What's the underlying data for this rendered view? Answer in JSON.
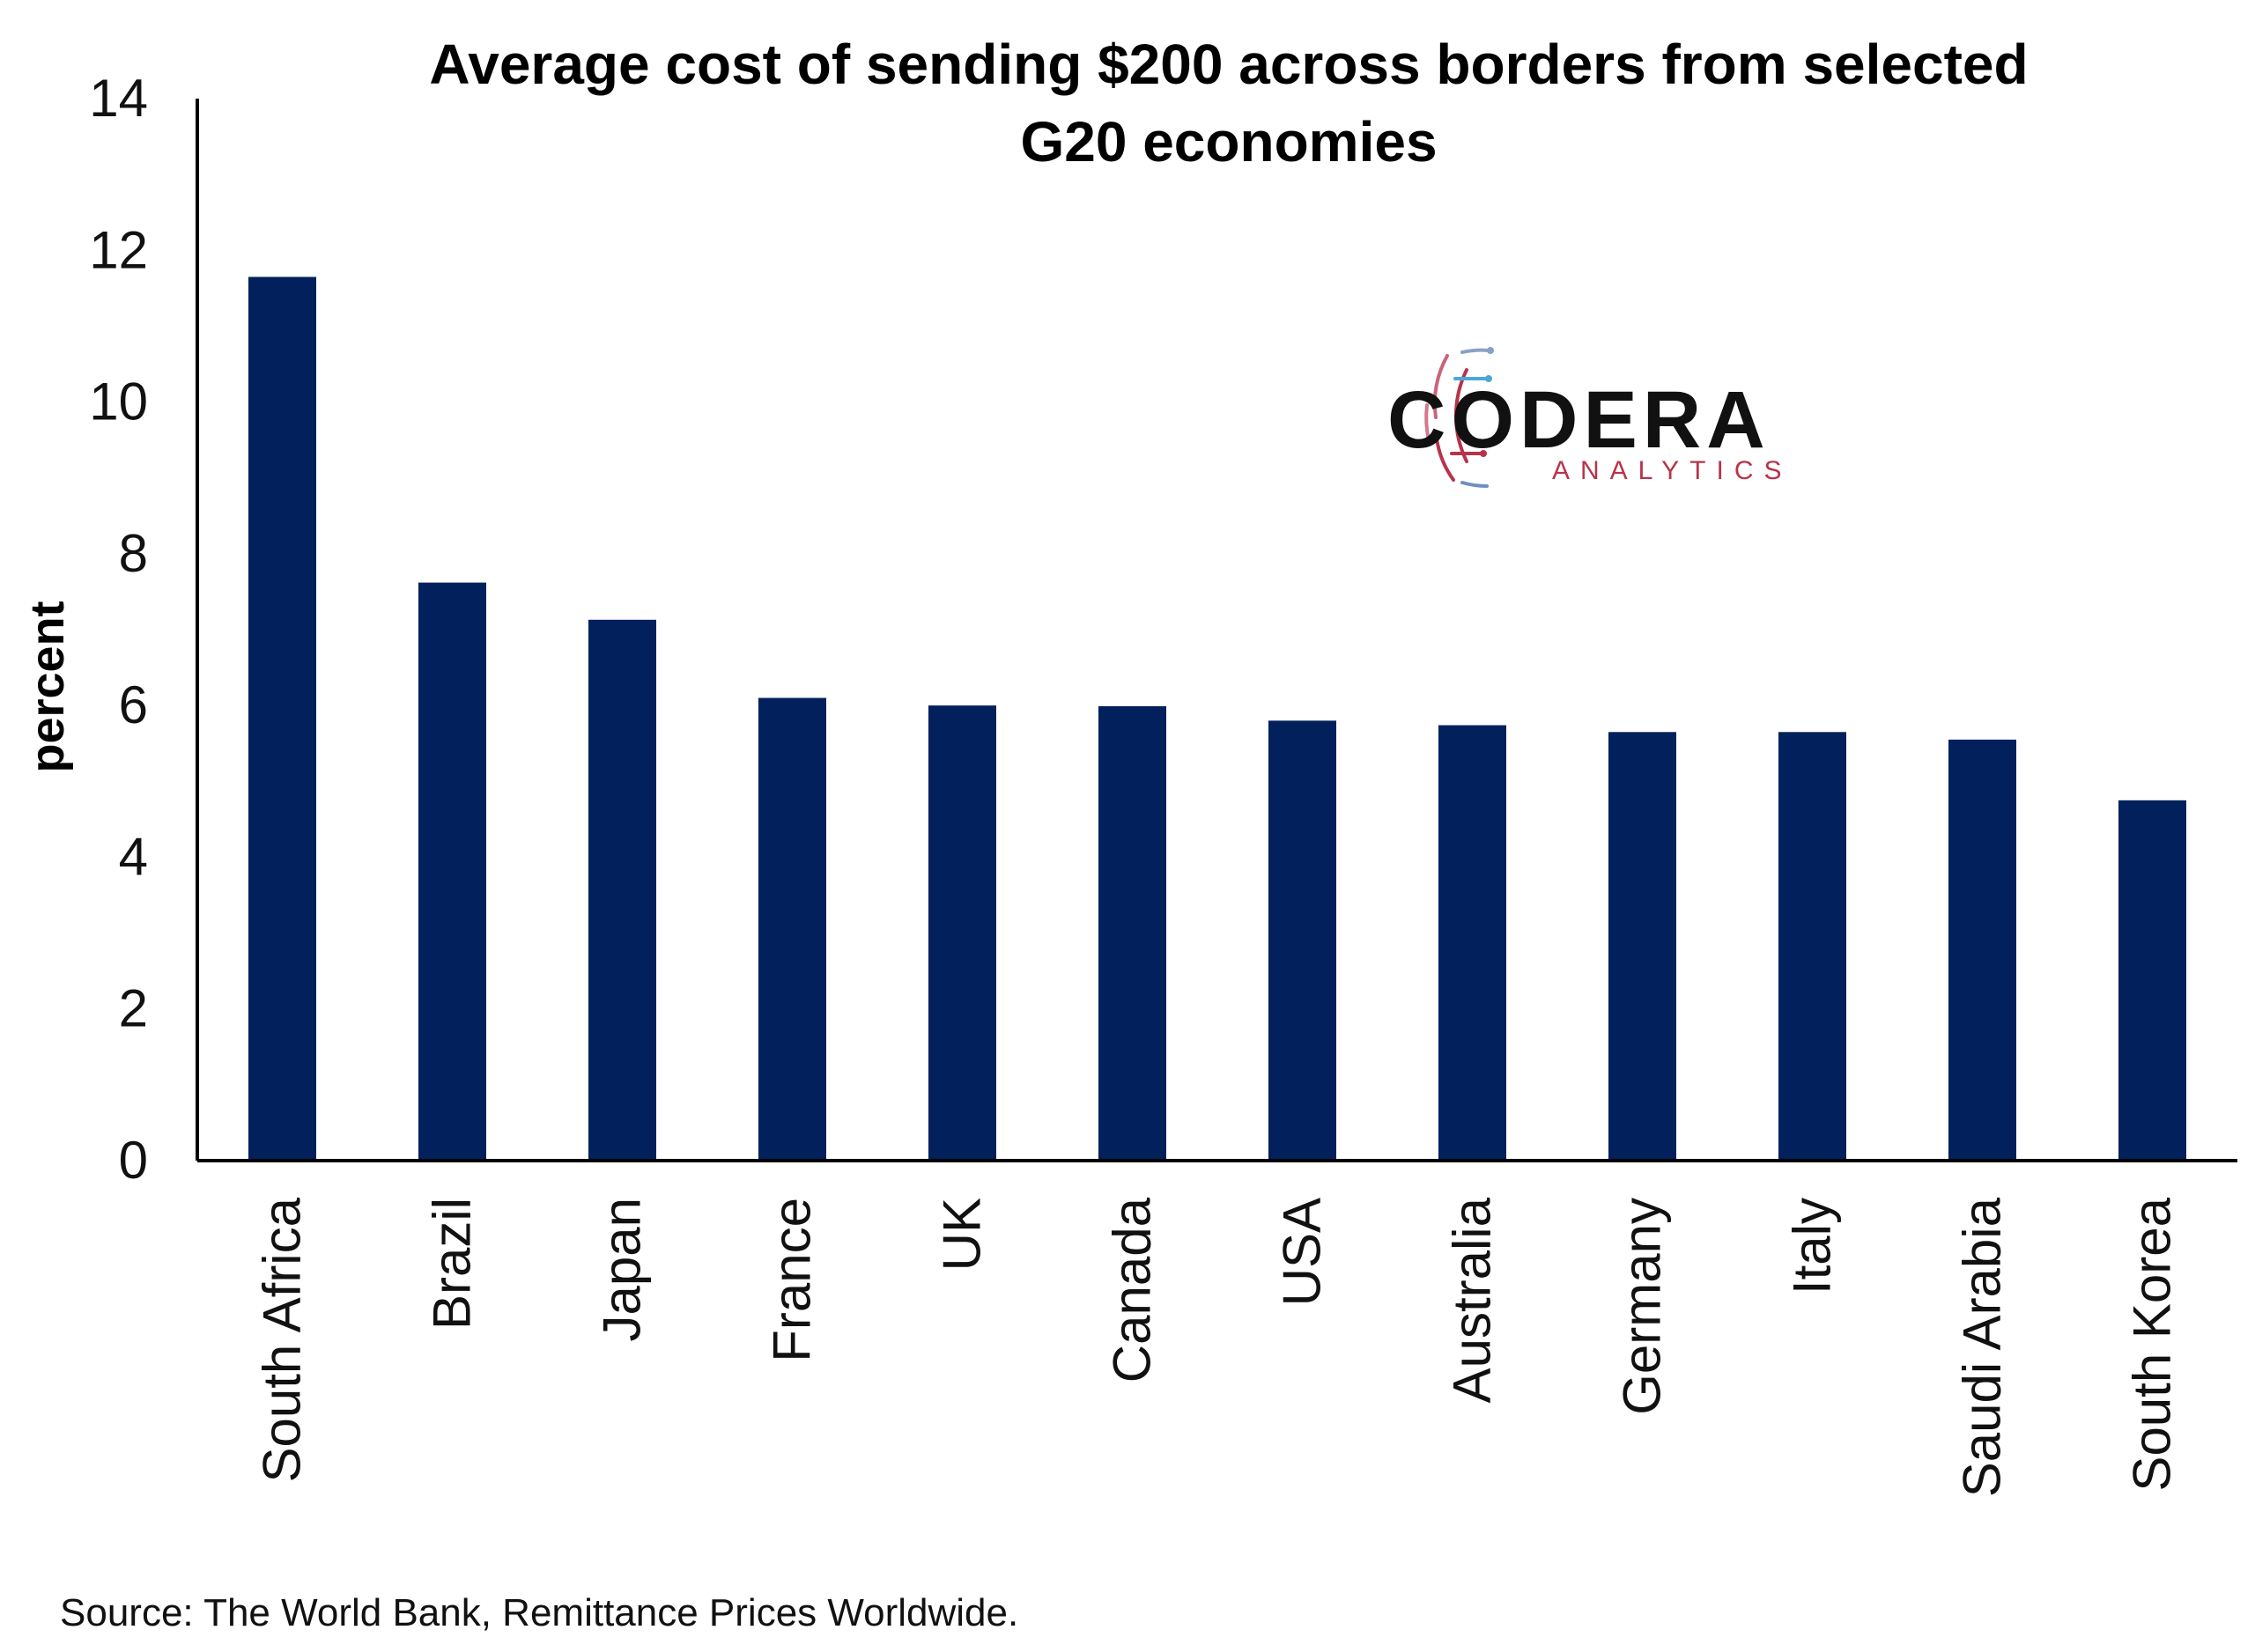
{
  "colors": {
    "bar": "#02215c",
    "axis": "#000000",
    "logo_red": "#b8334a",
    "logo_blue": "#4aa8d8"
  },
  "source": "Source: The World Bank, Remittance Prices Worldwide.",
  "logo": {
    "name": "CODERA",
    "subtitle": "ANALYTICS"
  },
  "chart_data": {
    "type": "bar",
    "title": "Average cost of sending $200 across borders from selected G20 economies",
    "title_lines": [
      "Average cost of sending $200 across borders from selected",
      "G20 economies"
    ],
    "xlabel": "",
    "ylabel": "percent",
    "ylim": [
      0,
      14
    ],
    "yticks": [
      0,
      2,
      4,
      6,
      8,
      10,
      12,
      14
    ],
    "grid": false,
    "categories": [
      "South Africa",
      "Brazil",
      "Japan",
      "France",
      "UK",
      "Canada",
      "USA",
      "Australia",
      "Germany",
      "Italy",
      "Saudi Arabia",
      "South Korea"
    ],
    "values": [
      11.65,
      7.62,
      7.13,
      6.1,
      6.0,
      5.99,
      5.8,
      5.74,
      5.65,
      5.65,
      5.55,
      4.75
    ]
  }
}
